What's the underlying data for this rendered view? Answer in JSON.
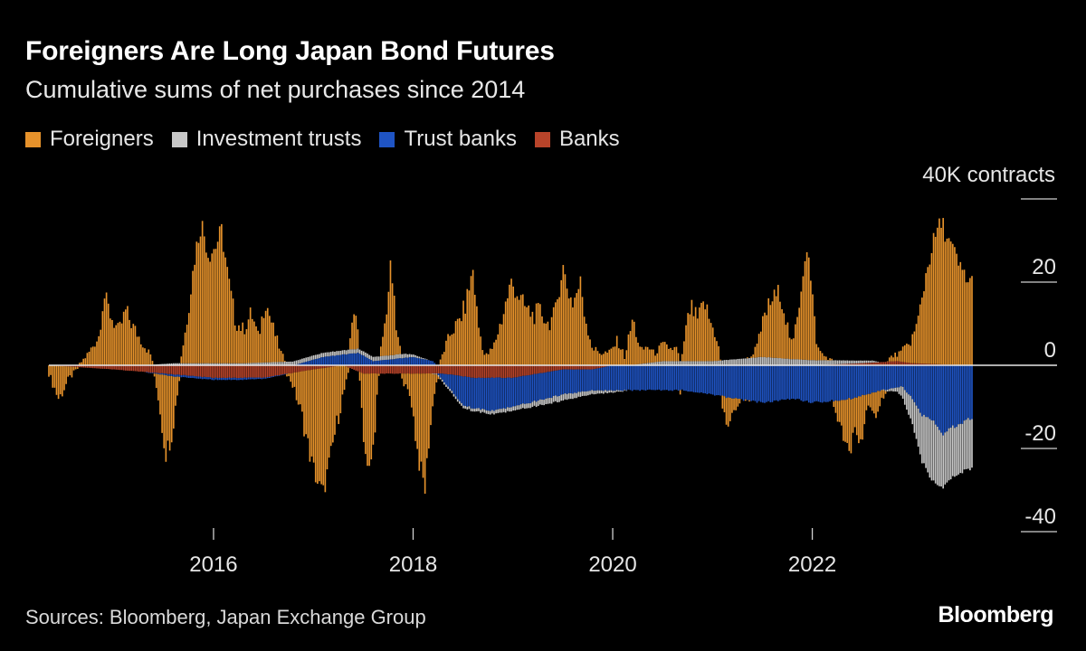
{
  "header": {
    "title": "Foreigners Are Long Japan Bond Futures",
    "subtitle": "Cumulative sums of net purchases since 2014"
  },
  "legend": [
    {
      "label": "Foreigners",
      "color": "#e6922b"
    },
    {
      "label": "Investment trusts",
      "color": "#c8c8c8"
    },
    {
      "label": "Trust banks",
      "color": "#1f54c4"
    },
    {
      "label": "Banks",
      "color": "#b8442a"
    }
  ],
  "footer": {
    "source": "Sources: Bloomberg, Japan Exchange Group",
    "brand": "Bloomberg"
  },
  "chart_data": {
    "type": "bar",
    "stacked": true,
    "title": "Foreigners Are Long Japan Bond Futures",
    "subtitle": "Cumulative sums of net purchases since 2014",
    "unit_label": "40K contracts",
    "ylim": [
      -40,
      40
    ],
    "yticks": [
      {
        "value": 40,
        "label": ""
      },
      {
        "value": 20,
        "label": "20"
      },
      {
        "value": 0,
        "label": "0"
      },
      {
        "value": -20,
        "label": "-20"
      },
      {
        "value": -40,
        "label": "-40"
      }
    ],
    "xlim": [
      2014.35,
      2023.6
    ],
    "xticks": [
      {
        "value": 2016,
        "label": "2016"
      },
      {
        "value": 2018,
        "label": "2018"
      },
      {
        "value": 2020,
        "label": "2020"
      },
      {
        "value": 2022,
        "label": "2022"
      }
    ],
    "series_names": [
      "Foreigners",
      "Investment trusts",
      "Trust banks",
      "Banks"
    ],
    "series_colors": [
      "#e6922b",
      "#c8c8c8",
      "#1f54c4",
      "#b8442a"
    ],
    "sampling": "weekly, values interpolated between anchor points",
    "anchors": {
      "Foreigners": [
        [
          2014.35,
          -2
        ],
        [
          2014.45,
          -8
        ],
        [
          2014.55,
          -3
        ],
        [
          2014.65,
          0
        ],
        [
          2014.75,
          3
        ],
        [
          2014.85,
          7
        ],
        [
          2014.9,
          17
        ],
        [
          2014.97,
          12
        ],
        [
          2015.05,
          8
        ],
        [
          2015.12,
          13
        ],
        [
          2015.2,
          9
        ],
        [
          2015.3,
          5
        ],
        [
          2015.38,
          2
        ],
        [
          2015.45,
          -6
        ],
        [
          2015.52,
          -19
        ],
        [
          2015.58,
          -14
        ],
        [
          2015.65,
          -2
        ],
        [
          2015.72,
          8
        ],
        [
          2015.82,
          27
        ],
        [
          2015.88,
          34
        ],
        [
          2015.95,
          26
        ],
        [
          2016.02,
          28
        ],
        [
          2016.08,
          32
        ],
        [
          2016.15,
          20
        ],
        [
          2016.22,
          10
        ],
        [
          2016.3,
          8
        ],
        [
          2016.38,
          12
        ],
        [
          2016.45,
          6
        ],
        [
          2016.52,
          15
        ],
        [
          2016.6,
          8
        ],
        [
          2016.68,
          2
        ],
        [
          2016.78,
          -2
        ],
        [
          2016.88,
          -10
        ],
        [
          2016.98,
          -22
        ],
        [
          2017.05,
          -28
        ],
        [
          2017.1,
          -30
        ],
        [
          2017.17,
          -22
        ],
        [
          2017.25,
          -12
        ],
        [
          2017.35,
          -2
        ],
        [
          2017.4,
          10
        ],
        [
          2017.45,
          4
        ],
        [
          2017.5,
          -14
        ],
        [
          2017.55,
          -25
        ],
        [
          2017.6,
          -18
        ],
        [
          2017.65,
          -2
        ],
        [
          2017.72,
          8
        ],
        [
          2017.78,
          22
        ],
        [
          2017.83,
          6
        ],
        [
          2017.9,
          -2
        ],
        [
          2017.98,
          -6
        ],
        [
          2018.05,
          -20
        ],
        [
          2018.12,
          -28
        ],
        [
          2018.15,
          -18
        ],
        [
          2018.22,
          -3
        ],
        [
          2018.3,
          3
        ],
        [
          2018.38,
          8
        ],
        [
          2018.45,
          10
        ],
        [
          2018.52,
          14
        ],
        [
          2018.6,
          23
        ],
        [
          2018.65,
          10
        ],
        [
          2018.72,
          2
        ],
        [
          2018.8,
          4
        ],
        [
          2018.9,
          12
        ],
        [
          2018.98,
          20
        ],
        [
          2019.05,
          17
        ],
        [
          2019.12,
          14
        ],
        [
          2019.2,
          12
        ],
        [
          2019.28,
          13
        ],
        [
          2019.35,
          10
        ],
        [
          2019.42,
          12
        ],
        [
          2019.5,
          24
        ],
        [
          2019.55,
          18
        ],
        [
          2019.6,
          15
        ],
        [
          2019.68,
          20
        ],
        [
          2019.72,
          12
        ],
        [
          2019.8,
          4
        ],
        [
          2019.88,
          3
        ],
        [
          2019.97,
          3
        ],
        [
          2020.05,
          6
        ],
        [
          2020.12,
          2
        ],
        [
          2020.2,
          11
        ],
        [
          2020.28,
          3
        ],
        [
          2020.35,
          4
        ],
        [
          2020.42,
          2
        ],
        [
          2020.5,
          4
        ],
        [
          2020.58,
          3
        ],
        [
          2020.65,
          3
        ],
        [
          2020.68,
          -2
        ],
        [
          2020.72,
          6
        ],
        [
          2020.78,
          13
        ],
        [
          2020.85,
          10
        ],
        [
          2020.92,
          14
        ],
        [
          2020.97,
          10
        ],
        [
          2021.05,
          5
        ],
        [
          2021.1,
          -3
        ],
        [
          2021.15,
          -7
        ],
        [
          2021.22,
          -3
        ],
        [
          2021.3,
          0
        ],
        [
          2021.38,
          0
        ],
        [
          2021.45,
          3
        ],
        [
          2021.52,
          10
        ],
        [
          2021.6,
          14
        ],
        [
          2021.68,
          16
        ],
        [
          2021.75,
          8
        ],
        [
          2021.8,
          3
        ],
        [
          2021.85,
          10
        ],
        [
          2021.92,
          24
        ],
        [
          2021.95,
          28
        ],
        [
          2021.98,
          20
        ],
        [
          2022.05,
          3
        ],
        [
          2022.12,
          1
        ],
        [
          2022.2,
          0
        ],
        [
          2022.3,
          -8
        ],
        [
          2022.38,
          -15
        ],
        [
          2022.42,
          -6
        ],
        [
          2022.48,
          -12
        ],
        [
          2022.55,
          -3
        ],
        [
          2022.62,
          -6
        ],
        [
          2022.7,
          -2
        ],
        [
          2022.78,
          1
        ],
        [
          2022.88,
          2
        ],
        [
          2022.98,
          5
        ],
        [
          2023.05,
          9
        ],
        [
          2023.1,
          16
        ],
        [
          2023.15,
          23
        ],
        [
          2023.2,
          28
        ],
        [
          2023.25,
          32
        ],
        [
          2023.3,
          34
        ],
        [
          2023.36,
          30
        ],
        [
          2023.42,
          27
        ],
        [
          2023.48,
          23
        ],
        [
          2023.53,
          22
        ],
        [
          2023.56,
          20
        ]
      ],
      "Investment trusts": [
        [
          2014.35,
          0
        ],
        [
          2015.3,
          0
        ],
        [
          2015.6,
          0.5
        ],
        [
          2016.3,
          0.5
        ],
        [
          2016.9,
          1
        ],
        [
          2017.9,
          1
        ],
        [
          2018.3,
          -0.5
        ],
        [
          2019.0,
          -1
        ],
        [
          2019.5,
          -1.5
        ],
        [
          2020.0,
          -0.5
        ],
        [
          2020.5,
          1
        ],
        [
          2021.0,
          1
        ],
        [
          2021.5,
          2
        ],
        [
          2021.8,
          1.5
        ],
        [
          2022.2,
          1
        ],
        [
          2022.6,
          0.5
        ],
        [
          2022.85,
          -1
        ],
        [
          2023.0,
          -6
        ],
        [
          2023.1,
          -11
        ],
        [
          2023.2,
          -15
        ],
        [
          2023.3,
          -13
        ],
        [
          2023.4,
          -12
        ],
        [
          2023.56,
          -12
        ]
      ],
      "Trust banks": [
        [
          2014.35,
          0
        ],
        [
          2015.3,
          0
        ],
        [
          2015.6,
          -0.5
        ],
        [
          2016.3,
          -0.5
        ],
        [
          2016.8,
          0
        ],
        [
          2017.1,
          2
        ],
        [
          2017.45,
          3
        ],
        [
          2017.6,
          1
        ],
        [
          2018.0,
          2
        ],
        [
          2018.2,
          1
        ],
        [
          2018.5,
          -7
        ],
        [
          2018.8,
          -8
        ],
        [
          2019.0,
          -7
        ],
        [
          2019.5,
          -6
        ],
        [
          2019.8,
          -5
        ],
        [
          2020.0,
          -6
        ],
        [
          2020.3,
          -6
        ],
        [
          2020.6,
          -6
        ],
        [
          2020.7,
          -6
        ],
        [
          2021.0,
          -7
        ],
        [
          2021.2,
          -8
        ],
        [
          2021.5,
          -9
        ],
        [
          2021.8,
          -8
        ],
        [
          2022.0,
          -9
        ],
        [
          2022.4,
          -8
        ],
        [
          2022.7,
          -6
        ],
        [
          2022.9,
          -5
        ],
        [
          2023.0,
          -8
        ],
        [
          2023.1,
          -12
        ],
        [
          2023.2,
          -13
        ],
        [
          2023.3,
          -17
        ],
        [
          2023.4,
          -15
        ],
        [
          2023.56,
          -13
        ]
      ],
      "Banks": [
        [
          2014.35,
          0
        ],
        [
          2015.0,
          -1
        ],
        [
          2015.5,
          -2
        ],
        [
          2016.0,
          -3
        ],
        [
          2016.5,
          -3
        ],
        [
          2017.0,
          -1
        ],
        [
          2017.3,
          0
        ],
        [
          2017.5,
          -2
        ],
        [
          2017.8,
          -2
        ],
        [
          2018.0,
          -2
        ],
        [
          2018.3,
          -2
        ],
        [
          2018.6,
          -3
        ],
        [
          2019.0,
          -3
        ],
        [
          2019.5,
          -1
        ],
        [
          2019.8,
          -1
        ],
        [
          2020.0,
          0
        ],
        [
          2020.5,
          0
        ],
        [
          2021.0,
          0
        ],
        [
          2021.5,
          0
        ],
        [
          2022.0,
          0
        ],
        [
          2022.5,
          0.5
        ],
        [
          2022.85,
          1
        ],
        [
          2023.0,
          0.5
        ],
        [
          2023.56,
          0
        ]
      ]
    }
  }
}
